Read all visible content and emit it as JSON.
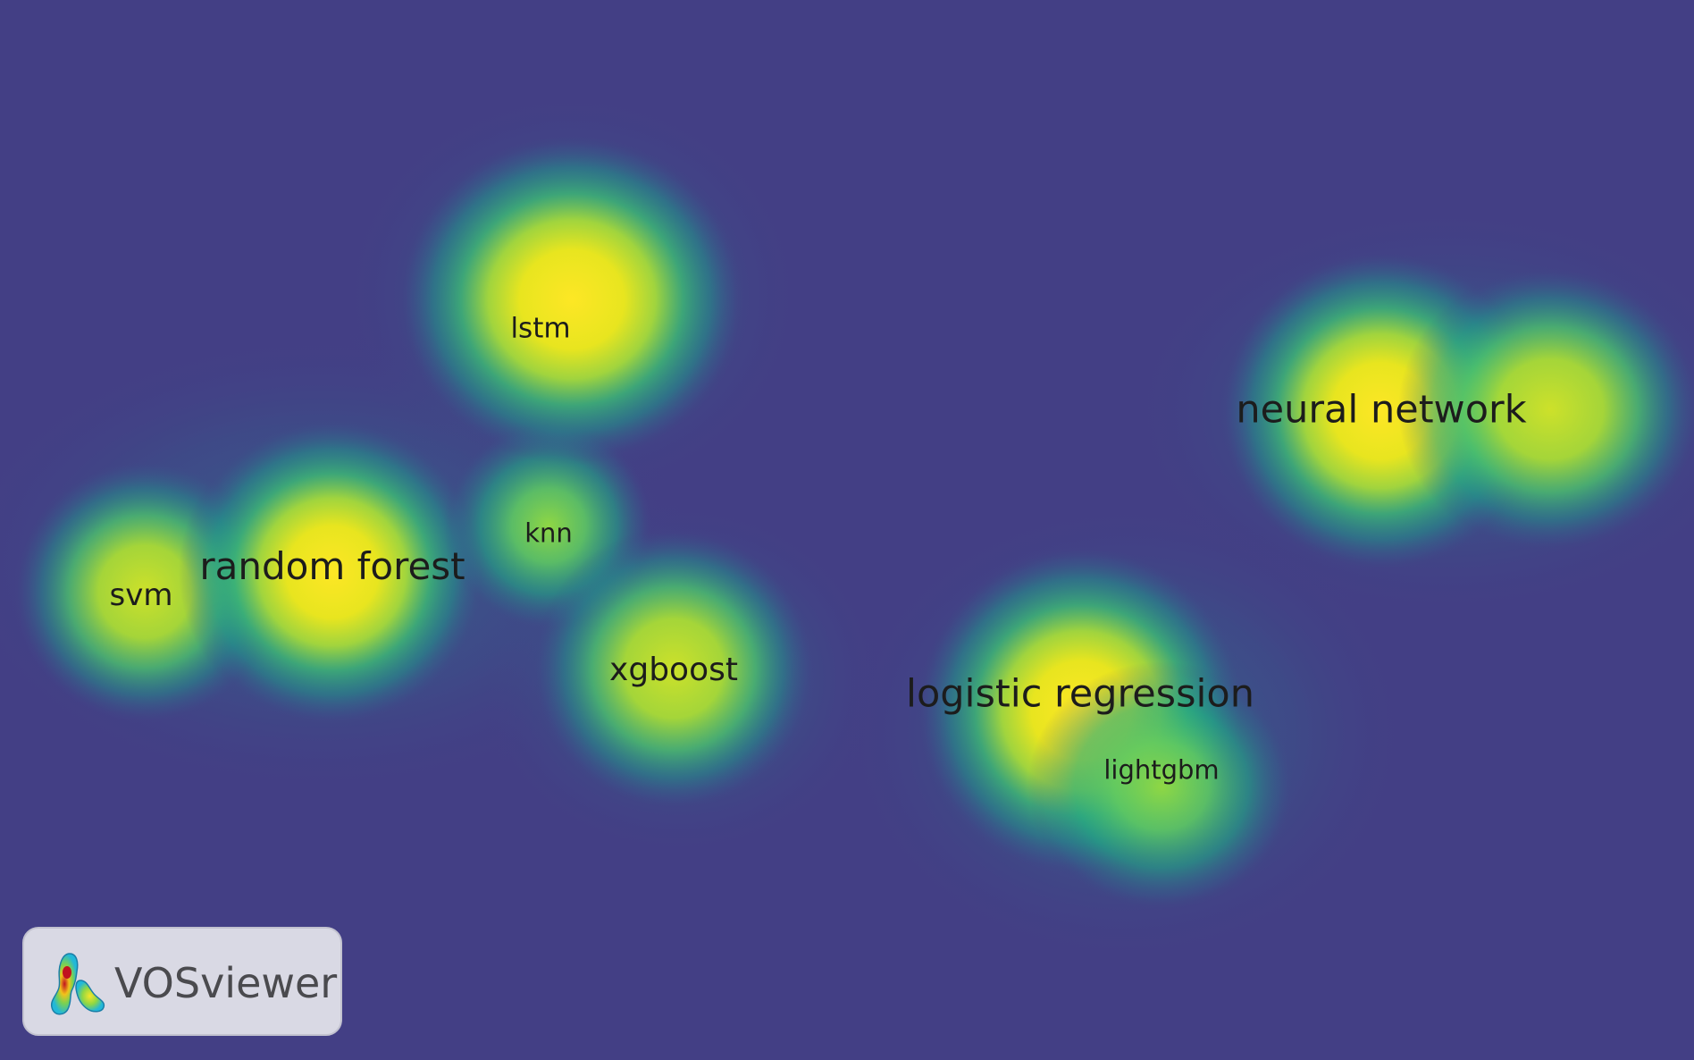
{
  "map": {
    "type": "density-visualization",
    "background_color": "#433f85",
    "terms": [
      {
        "id": "lstm",
        "label": "lstm"
      },
      {
        "id": "neural-network",
        "label": "neural network"
      },
      {
        "id": "knn",
        "label": "knn"
      },
      {
        "id": "random-forest",
        "label": "random forest"
      },
      {
        "id": "svm",
        "label": "svm"
      },
      {
        "id": "xgboost",
        "label": "xgboost"
      },
      {
        "id": "logistic-regression",
        "label": "logistic regression"
      },
      {
        "id": "lightgbm",
        "label": "lightgbm"
      }
    ],
    "density_colors": [
      "#433f85",
      "#2a7f8e",
      "#22a884",
      "#7ad151",
      "#fde725"
    ]
  },
  "logo": {
    "text": "VOSviewer",
    "icon": "vosviewer-logo-icon"
  }
}
